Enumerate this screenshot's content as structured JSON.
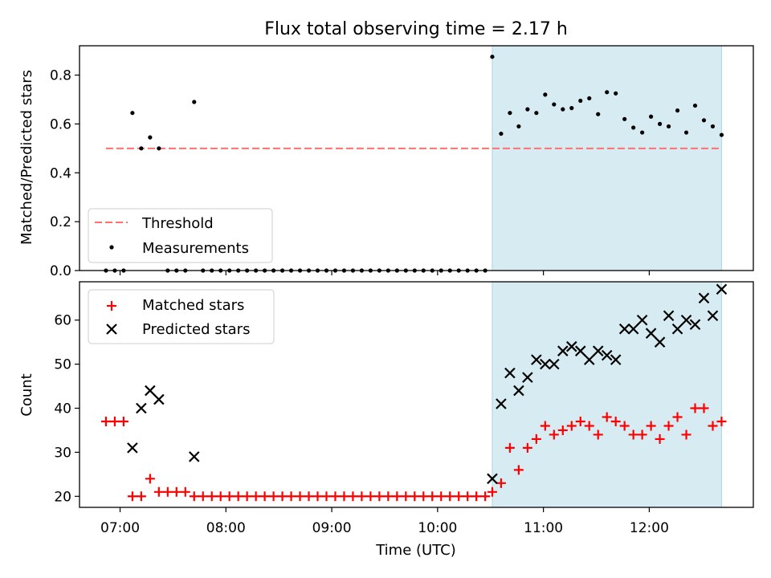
{
  "title": "Flux total observing time = 2.17 h",
  "colors": {
    "band": "#add8e6",
    "threshold": "#ff7070",
    "matched": "#ff0000",
    "predicted": "#000000",
    "measure": "#000000"
  },
  "chart_data": [
    {
      "type": "scatter",
      "ylabel": "Matched/Predicted stars",
      "ylim": [
        0,
        0.92
      ],
      "yticks": [
        0.0,
        0.2,
        0.4,
        0.6,
        0.8
      ],
      "ytick_labels": [
        "0.0",
        "0.2",
        "0.4",
        "0.6",
        "0.8"
      ],
      "xlim": [
        "06:37",
        "12:59"
      ],
      "grid": false,
      "legend": {
        "placement": "lower-left",
        "entries": [
          "Threshold",
          "Measurements"
        ]
      },
      "highlight_band": [
        "10:31",
        "12:41"
      ],
      "threshold": {
        "name": "Threshold",
        "y": 0.5,
        "x": [
          "06:52",
          "12:40"
        ]
      },
      "series": [
        {
          "name": "Measurements",
          "x": [
            "06:52",
            "06:57",
            "07:02",
            "07:07",
            "07:12",
            "07:17",
            "07:22",
            "07:27",
            "07:32",
            "07:37",
            "07:42",
            "07:47",
            "07:52",
            "07:57",
            "08:02",
            "08:07",
            "08:12",
            "08:17",
            "08:22",
            "08:27",
            "08:32",
            "08:37",
            "08:42",
            "08:47",
            "08:52",
            "08:57",
            "09:02",
            "09:07",
            "09:12",
            "09:17",
            "09:22",
            "09:27",
            "09:32",
            "09:37",
            "09:42",
            "09:47",
            "09:52",
            "09:57",
            "10:02",
            "10:07",
            "10:12",
            "10:17",
            "10:22",
            "10:27",
            "10:31",
            "10:36",
            "10:41",
            "10:46",
            "10:51",
            "10:56",
            "11:01",
            "11:06",
            "11:11",
            "11:16",
            "11:21",
            "11:26",
            "11:31",
            "11:36",
            "11:41",
            "11:46",
            "11:51",
            "11:56",
            "12:01",
            "12:06",
            "12:11",
            "12:16",
            "12:21",
            "12:26",
            "12:31",
            "12:36",
            "12:41"
          ],
          "y": [
            0,
            0,
            0,
            0.645,
            0.5,
            0.545,
            0.5,
            0,
            0,
            0,
            0.69,
            0,
            0,
            0,
            0,
            0,
            0,
            0,
            0,
            0,
            0,
            0,
            0,
            0,
            0,
            0,
            0,
            0,
            0,
            0,
            0,
            0,
            0,
            0,
            0,
            0,
            0,
            0,
            0,
            0,
            0,
            0,
            0,
            0,
            0.875,
            0.56,
            0.645,
            0.59,
            0.66,
            0.645,
            0.72,
            0.68,
            0.66,
            0.665,
            0.695,
            0.705,
            0.64,
            0.73,
            0.725,
            0.62,
            0.585,
            0.565,
            0.63,
            0.6,
            0.59,
            0.655,
            0.565,
            0.675,
            0.615,
            0.59,
            0.555
          ]
        }
      ]
    },
    {
      "type": "scatter",
      "xlabel": "Time (UTC)",
      "ylabel": "Count",
      "ylim": [
        17.5,
        68.7
      ],
      "yticks": [
        20,
        30,
        40,
        50,
        60
      ],
      "ytick_labels": [
        "20",
        "30",
        "40",
        "50",
        "60"
      ],
      "xlim": [
        "06:37",
        "12:59"
      ],
      "xticks": [
        "07:00",
        "08:00",
        "09:00",
        "10:00",
        "11:00",
        "12:00"
      ],
      "xtick_labels": [
        "07:00",
        "08:00",
        "09:00",
        "10:00",
        "11:00",
        "12:00"
      ],
      "grid": false,
      "legend": {
        "placement": "upper-left",
        "entries": [
          "Matched stars",
          "Predicted stars"
        ]
      },
      "highlight_band": [
        "10:31",
        "12:41"
      ],
      "series": [
        {
          "name": "Matched stars",
          "x": [
            "06:52",
            "06:57",
            "07:02",
            "07:07",
            "07:12",
            "07:17",
            "07:22",
            "07:27",
            "07:32",
            "07:37",
            "07:42",
            "07:47",
            "07:52",
            "07:57",
            "08:02",
            "08:07",
            "08:12",
            "08:17",
            "08:22",
            "08:27",
            "08:32",
            "08:37",
            "08:42",
            "08:47",
            "08:52",
            "08:57",
            "09:02",
            "09:07",
            "09:12",
            "09:17",
            "09:22",
            "09:27",
            "09:32",
            "09:37",
            "09:42",
            "09:47",
            "09:52",
            "09:57",
            "10:02",
            "10:07",
            "10:12",
            "10:17",
            "10:22",
            "10:27",
            "10:31",
            "10:36",
            "10:41",
            "10:46",
            "10:51",
            "10:56",
            "11:01",
            "11:06",
            "11:11",
            "11:16",
            "11:21",
            "11:26",
            "11:31",
            "11:36",
            "11:41",
            "11:46",
            "11:51",
            "11:56",
            "12:01",
            "12:06",
            "12:11",
            "12:16",
            "12:21",
            "12:26",
            "12:31",
            "12:36",
            "12:41"
          ],
          "y": [
            37,
            37,
            37,
            20,
            20,
            24,
            21,
            21,
            21,
            21,
            20,
            20,
            20,
            20,
            20,
            20,
            20,
            20,
            20,
            20,
            20,
            20,
            20,
            20,
            20,
            20,
            20,
            20,
            20,
            20,
            20,
            20,
            20,
            20,
            20,
            20,
            20,
            20,
            20,
            20,
            20,
            20,
            20,
            20,
            21,
            23,
            31,
            26,
            31,
            33,
            36,
            34,
            35,
            36,
            37,
            36,
            34,
            38,
            37,
            36,
            34,
            34,
            36,
            33,
            36,
            38,
            34,
            40,
            40,
            36,
            37
          ]
        },
        {
          "name": "Predicted stars",
          "x": [
            "07:07",
            "07:12",
            "07:17",
            "07:22",
            "07:42",
            "10:31",
            "10:36",
            "10:41",
            "10:46",
            "10:51",
            "10:56",
            "11:01",
            "11:06",
            "11:11",
            "11:16",
            "11:21",
            "11:26",
            "11:31",
            "11:36",
            "11:41",
            "11:46",
            "11:51",
            "11:56",
            "12:01",
            "12:06",
            "12:11",
            "12:16",
            "12:21",
            "12:26",
            "12:31",
            "12:36",
            "12:41"
          ],
          "y": [
            31,
            40,
            44,
            42,
            29,
            24,
            41,
            48,
            44,
            47,
            51,
            50,
            50,
            53,
            54,
            53,
            51,
            53,
            52,
            51,
            58,
            58,
            60,
            57,
            55,
            61,
            58,
            60,
            59,
            65,
            61,
            67
          ]
        }
      ]
    }
  ]
}
